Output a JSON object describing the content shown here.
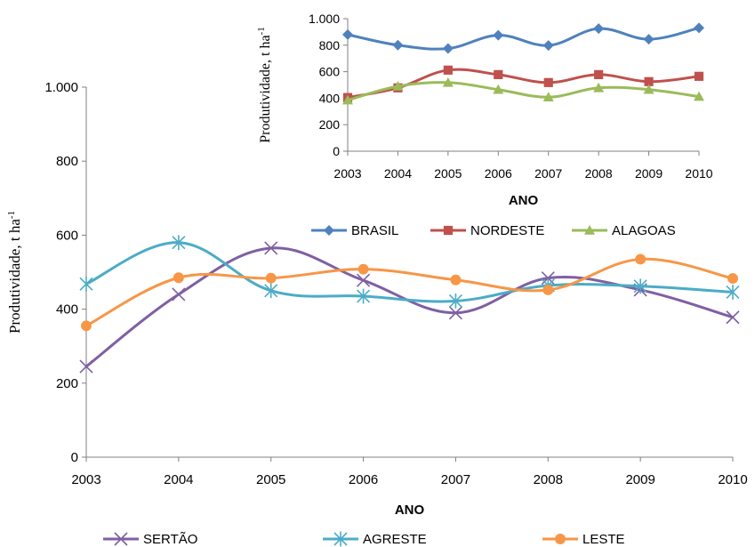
{
  "chart_data": [
    {
      "type": "line",
      "title": "",
      "xlabel": "ANO",
      "ylabel": "Produtividade, t ha",
      "ylabel_sup": "-1",
      "categories": [
        "2003",
        "2004",
        "2005",
        "2006",
        "2007",
        "2008",
        "2009",
        "2010"
      ],
      "ylim": [
        0,
        1000
      ],
      "ytick_values": [
        0,
        200,
        400,
        600,
        800,
        1000
      ],
      "ytick_labels": [
        "0",
        "200",
        "400",
        "600",
        "800",
        "1.000"
      ],
      "grid": false,
      "legend_position": "bottom",
      "series": [
        {
          "name": "SERTÃO",
          "color": "#7F5FA3",
          "marker": "x",
          "values": [
            245,
            440,
            565,
            478,
            390,
            484,
            452,
            378
          ]
        },
        {
          "name": "AGRESTE",
          "color": "#4BACC6",
          "marker": "asterisk",
          "values": [
            468,
            580,
            450,
            435,
            422,
            464,
            462,
            446
          ]
        },
        {
          "name": "LESTE",
          "color": "#F79646",
          "marker": "circle",
          "values": [
            355,
            485,
            484,
            508,
            479,
            452,
            535,
            483
          ]
        }
      ]
    },
    {
      "type": "line",
      "title": "",
      "xlabel": "ANO",
      "ylabel": "Produtividade, t ha",
      "ylabel_sup": "-1",
      "categories": [
        "2003",
        "2004",
        "2005",
        "2006",
        "2007",
        "2008",
        "2009",
        "2010"
      ],
      "ylim": [
        0,
        1000
      ],
      "ytick_values": [
        0,
        200,
        400,
        600,
        800,
        1000
      ],
      "ytick_labels": [
        "0",
        "200",
        "400",
        "600",
        "800",
        "1.000"
      ],
      "grid": false,
      "legend_position": "bottom",
      "series": [
        {
          "name": "BRASIL",
          "color": "#4F81BD",
          "marker": "diamond",
          "values": [
            880,
            800,
            775,
            875,
            798,
            925,
            845,
            930
          ]
        },
        {
          "name": "NORDESTE",
          "color": "#C0504D",
          "marker": "square",
          "values": [
            405,
            478,
            612,
            578,
            518,
            578,
            525,
            565
          ]
        },
        {
          "name": "ALAGOAS",
          "color": "#9BBB59",
          "marker": "triangle",
          "values": [
            385,
            490,
            518,
            465,
            408,
            478,
            465,
            412
          ]
        }
      ]
    }
  ]
}
